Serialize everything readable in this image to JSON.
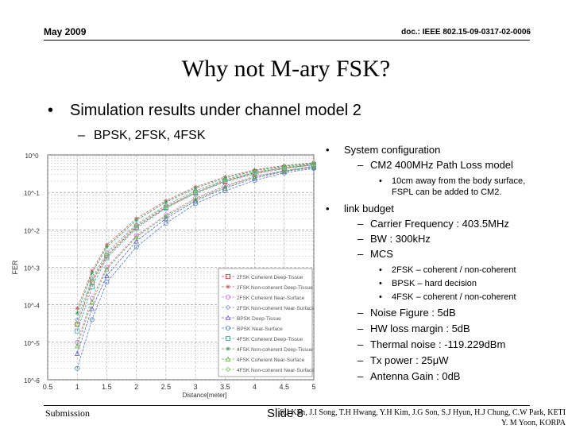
{
  "header": {
    "date": "May 2009",
    "doc_id": "doc.: IEEE 802.15-09-0317-02-0006"
  },
  "title": "Why not M-ary FSK?",
  "bullet1": "Simulation results under channel model 2",
  "bullet1_sub": "BPSK,  2FSK, 4FSK",
  "right": {
    "sys_title": "System  configuration",
    "sys_item": "CM2 400MHz Path Loss model",
    "sys_note_l1": "10cm away from the body surface,",
    "sys_note_l2": "FSPL can be added to CM2.",
    "link_title": "link budget",
    "link_items": [
      "Carrier Frequency : 403.5MHz",
      "BW : 300kHz",
      "MCS"
    ],
    "mcs_items": [
      "2FSK – coherent / non-coherent",
      "BPSK – hard decision",
      "4FSK – coherent / non-coherent"
    ],
    "more_items": [
      "Noise Figure : 5dB",
      "HW loss margin : 5dB",
      "Thermal noise : -119.229dBm",
      "Tx power : 25μW",
      "Antenna Gain : 0dB"
    ]
  },
  "chart_data": {
    "type": "line",
    "title": "",
    "xlabel": "Distance[meter]",
    "ylabel": "FER",
    "y_scale": "log",
    "xlim": [
      0.5,
      5
    ],
    "ylim": [
      1e-06,
      1
    ],
    "x_ticks": [
      "0.5",
      "1",
      "1.5",
      "2",
      "2.5",
      "3",
      "3.5",
      "4",
      "4.5",
      "5"
    ],
    "y_ticks": [
      "10^0",
      "10^-1",
      "10^-2",
      "10^-3",
      "10^-4",
      "10^-5",
      "10^-6"
    ],
    "legend_position": "bottom-right",
    "grid": true,
    "x": [
      1.0,
      1.25,
      1.5,
      2.0,
      2.5,
      3.0,
      3.5,
      4.0,
      4.5,
      5.0
    ],
    "series": [
      {
        "name": "2FSK Coherent Deep-Tissue",
        "color": "#d04040",
        "marker": "square",
        "values": [
          3e-05,
          0.0004,
          0.002,
          0.012,
          0.04,
          0.1,
          0.2,
          0.33,
          0.45,
          0.55
        ]
      },
      {
        "name": "2FSK Non-coherent Deep-Tissue",
        "color": "#c06060",
        "marker": "star",
        "values": [
          8e-05,
          0.0008,
          0.004,
          0.02,
          0.06,
          0.14,
          0.26,
          0.4,
          0.52,
          0.62
        ]
      },
      {
        "name": "2FSK Coherent Near-Surface",
        "color": "#d070d0",
        "marker": "circle",
        "values": [
          1e-05,
          0.00015,
          0.001,
          0.007,
          0.025,
          0.07,
          0.15,
          0.27,
          0.38,
          0.5
        ]
      },
      {
        "name": "2FSK Non-coherent Near-Surface",
        "color": "#9090d0",
        "marker": "diamond",
        "values": [
          4e-05,
          0.0005,
          0.0025,
          0.014,
          0.045,
          0.11,
          0.22,
          0.35,
          0.47,
          0.58
        ]
      },
      {
        "name": "BPSK Deep-Tissue",
        "color": "#6060c0",
        "marker": "triangle",
        "values": [
          5e-06,
          8e-05,
          0.0006,
          0.005,
          0.02,
          0.06,
          0.13,
          0.24,
          0.36,
          0.47
        ]
      },
      {
        "name": "BPSK Near-Surface",
        "color": "#5080c0",
        "marker": "circle",
        "values": [
          2e-06,
          4e-05,
          0.0004,
          0.0035,
          0.015,
          0.05,
          0.11,
          0.21,
          0.33,
          0.44
        ]
      },
      {
        "name": "4FSK Coherent Deep-Tissue",
        "color": "#40a0a0",
        "marker": "square",
        "values": [
          2e-05,
          0.0003,
          0.0018,
          0.011,
          0.038,
          0.095,
          0.19,
          0.31,
          0.43,
          0.54
        ]
      },
      {
        "name": "4FSK Non-coherent Deep-Tissue",
        "color": "#40a060",
        "marker": "star",
        "values": [
          6e-05,
          0.0007,
          0.0035,
          0.018,
          0.055,
          0.13,
          0.24,
          0.38,
          0.5,
          0.6
        ]
      },
      {
        "name": "4FSK Coherent Near-Surface",
        "color": "#60b040",
        "marker": "triangle",
        "values": [
          8e-06,
          0.00012,
          0.0009,
          0.0065,
          0.023,
          0.065,
          0.14,
          0.26,
          0.37,
          0.49
        ]
      },
      {
        "name": "4FSK Non-coherent Near-Surface",
        "color": "#80c060",
        "marker": "diamond",
        "values": [
          3e-05,
          0.00045,
          0.0022,
          0.013,
          0.042,
          0.1,
          0.21,
          0.34,
          0.46,
          0.57
        ]
      }
    ]
  },
  "footer": {
    "left": "Submission",
    "slide": "Slide 8",
    "authors_l1": "S.J Kim, J.I Song, T.H Hwang, Y.H Kim, J.G Son, S.J Hyun, H.J Chung, C.W Park, KETI",
    "authors_l2": "Y. M Yoon, KORPA"
  }
}
